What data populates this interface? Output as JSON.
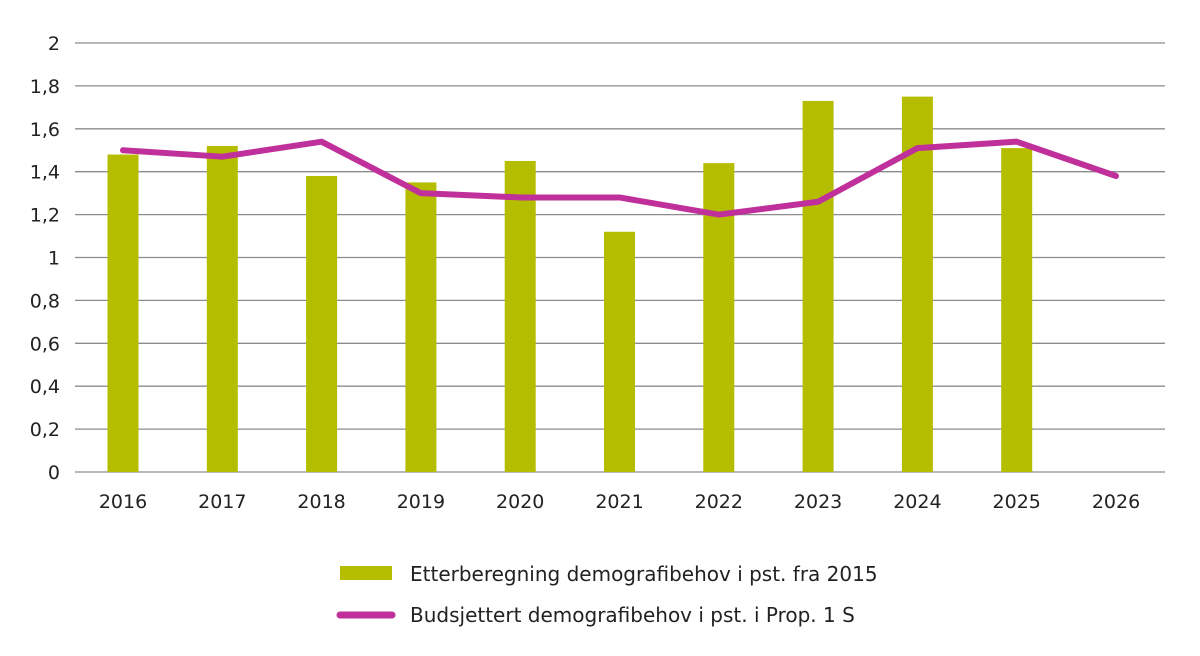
{
  "chart_data": {
    "type": "bar+line",
    "categories": [
      "2016",
      "2017",
      "2018",
      "2019",
      "2020",
      "2021",
      "2022",
      "2023",
      "2024",
      "2025",
      "2026"
    ],
    "series": [
      {
        "name": "Etterberegning demografibehov i pst. fra 2015",
        "type": "bar",
        "color": "#b5bd00",
        "values": [
          1.48,
          1.52,
          1.38,
          1.35,
          1.45,
          1.12,
          1.44,
          1.73,
          1.75,
          1.51,
          null
        ]
      },
      {
        "name": "Budsjettert demografibehov i pst. i Prop. 1 S",
        "type": "line",
        "color": "#c0309a",
        "values": [
          1.5,
          1.47,
          1.54,
          1.3,
          1.28,
          1.28,
          1.2,
          1.26,
          1.51,
          1.54,
          1.38
        ]
      }
    ],
    "yticks": [
      "0",
      "0,2",
      "0,4",
      "0,6",
      "0,8",
      "1",
      "1,2",
      "1,4",
      "1,6",
      "1,8",
      "2"
    ],
    "ylim": [
      0,
      2
    ],
    "grid": "horizontal",
    "legend_position": "bottom",
    "title": "",
    "xlabel": "",
    "ylabel": ""
  }
}
